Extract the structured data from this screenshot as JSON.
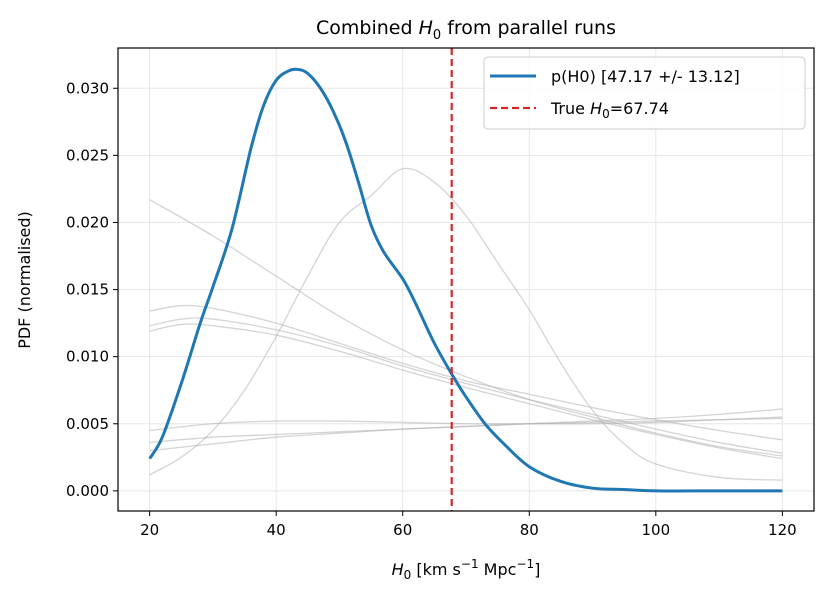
{
  "chart_data": {
    "type": "line",
    "title": {
      "pre": "Combined ",
      "sym": "H",
      "sub": "0",
      "post": " from parallel runs"
    },
    "xlabel": {
      "sym": "H",
      "sub": "0",
      "pre_unit": " [km s",
      "sup1": "−1",
      "mid": " Mpc",
      "sup2": "−1",
      "post": "]"
    },
    "ylabel": "PDF (normalised)",
    "xlim": [
      15,
      125
    ],
    "ylim": [
      -0.0015,
      0.033
    ],
    "xticks": [
      20,
      40,
      60,
      80,
      100,
      120
    ],
    "yticks": [
      "0.000",
      "0.005",
      "0.010",
      "0.015",
      "0.020",
      "0.025",
      "0.030"
    ],
    "grid": true,
    "legend": {
      "placement": "top-right",
      "items": [
        {
          "label": "p(H0) [47.17 +/- 13.12]",
          "style": "solid",
          "color": "#1f77b4"
        },
        {
          "label_pre": "True ",
          "label_sym": "H",
          "label_sub": "0",
          "label_post": "=67.74",
          "style": "dashed",
          "color": "#d62728"
        }
      ]
    },
    "colors": {
      "main": "#1f77b4",
      "truth": "#d62728",
      "runs": "#b0b0b0",
      "grid": "#e6e6e6"
    },
    "series": [
      {
        "name": "p(H0) [47.17 +/- 13.12]",
        "role": "main",
        "x": [
          20,
          22,
          25,
          28,
          30,
          33,
          36,
          38,
          40,
          42,
          43.5,
          45,
          47,
          49,
          51,
          53,
          55,
          57,
          60,
          62,
          65,
          68,
          70,
          73,
          76,
          80,
          85,
          90,
          95,
          100,
          110,
          120
        ],
        "y": [
          0.0024,
          0.004,
          0.008,
          0.0125,
          0.0152,
          0.0195,
          0.0255,
          0.0287,
          0.0306,
          0.0313,
          0.0314,
          0.0311,
          0.03,
          0.0283,
          0.026,
          0.023,
          0.0198,
          0.0178,
          0.0158,
          0.014,
          0.011,
          0.0085,
          0.007,
          0.005,
          0.0035,
          0.0018,
          0.0007,
          0.0002,
          0.0001,
          0.0,
          0.0,
          0.0
        ]
      },
      {
        "role": "run",
        "x": [
          20,
          30,
          40,
          50,
          60,
          70,
          80,
          90,
          100,
          110,
          120
        ],
        "y": [
          0.0217,
          0.019,
          0.016,
          0.013,
          0.0105,
          0.0085,
          0.0068,
          0.0055,
          0.0043,
          0.0033,
          0.0026
        ]
      },
      {
        "role": "run",
        "x": [
          20,
          25,
          30,
          40,
          50,
          60,
          70,
          80,
          90,
          100,
          110,
          120
        ],
        "y": [
          0.0134,
          0.0138,
          0.0136,
          0.0125,
          0.011,
          0.0095,
          0.0082,
          0.0072,
          0.0062,
          0.0053,
          0.0045,
          0.0038
        ]
      },
      {
        "role": "run",
        "x": [
          20,
          25,
          30,
          40,
          50,
          60,
          70,
          80,
          90,
          100,
          110,
          120
        ],
        "y": [
          0.0123,
          0.0128,
          0.0128,
          0.012,
          0.0108,
          0.0093,
          0.008,
          0.0068,
          0.0057,
          0.0046,
          0.0036,
          0.0028
        ]
      },
      {
        "role": "run",
        "x": [
          20,
          25,
          30,
          40,
          50,
          60,
          70,
          80,
          90,
          100,
          110,
          120
        ],
        "y": [
          0.0119,
          0.0124,
          0.0123,
          0.0116,
          0.0104,
          0.009,
          0.0077,
          0.0065,
          0.0053,
          0.0042,
          0.0032,
          0.0024
        ]
      },
      {
        "role": "run",
        "x": [
          20,
          25,
          30,
          35,
          40,
          45,
          50,
          55,
          60,
          65,
          70,
          75,
          80,
          85,
          90,
          95,
          100,
          110,
          120
        ],
        "y": [
          0.0012,
          0.0025,
          0.0045,
          0.0075,
          0.0115,
          0.016,
          0.02,
          0.022,
          0.024,
          0.023,
          0.0205,
          0.017,
          0.0135,
          0.0095,
          0.006,
          0.0035,
          0.002,
          0.001,
          0.0008
        ]
      },
      {
        "role": "run",
        "x": [
          20,
          30,
          40,
          50,
          60,
          70,
          80,
          90,
          100,
          110,
          120
        ],
        "y": [
          0.0045,
          0.005,
          0.0052,
          0.0052,
          0.0051,
          0.005,
          0.005,
          0.005,
          0.0051,
          0.0053,
          0.0055
        ]
      },
      {
        "role": "run",
        "x": [
          20,
          30,
          40,
          50,
          60,
          70,
          80,
          90,
          100,
          110,
          120
        ],
        "y": [
          0.0036,
          0.004,
          0.0042,
          0.0044,
          0.0046,
          0.0048,
          0.005,
          0.0052,
          0.0054,
          0.0057,
          0.0061
        ]
      },
      {
        "role": "run",
        "x": [
          20,
          30,
          40,
          50,
          60,
          70,
          80,
          90,
          100,
          110,
          120
        ],
        "y": [
          0.003,
          0.0035,
          0.004,
          0.0043,
          0.0046,
          0.0048,
          0.005,
          0.0051,
          0.0052,
          0.0053,
          0.0054
        ]
      }
    ],
    "truth": {
      "x": 67.74
    }
  }
}
